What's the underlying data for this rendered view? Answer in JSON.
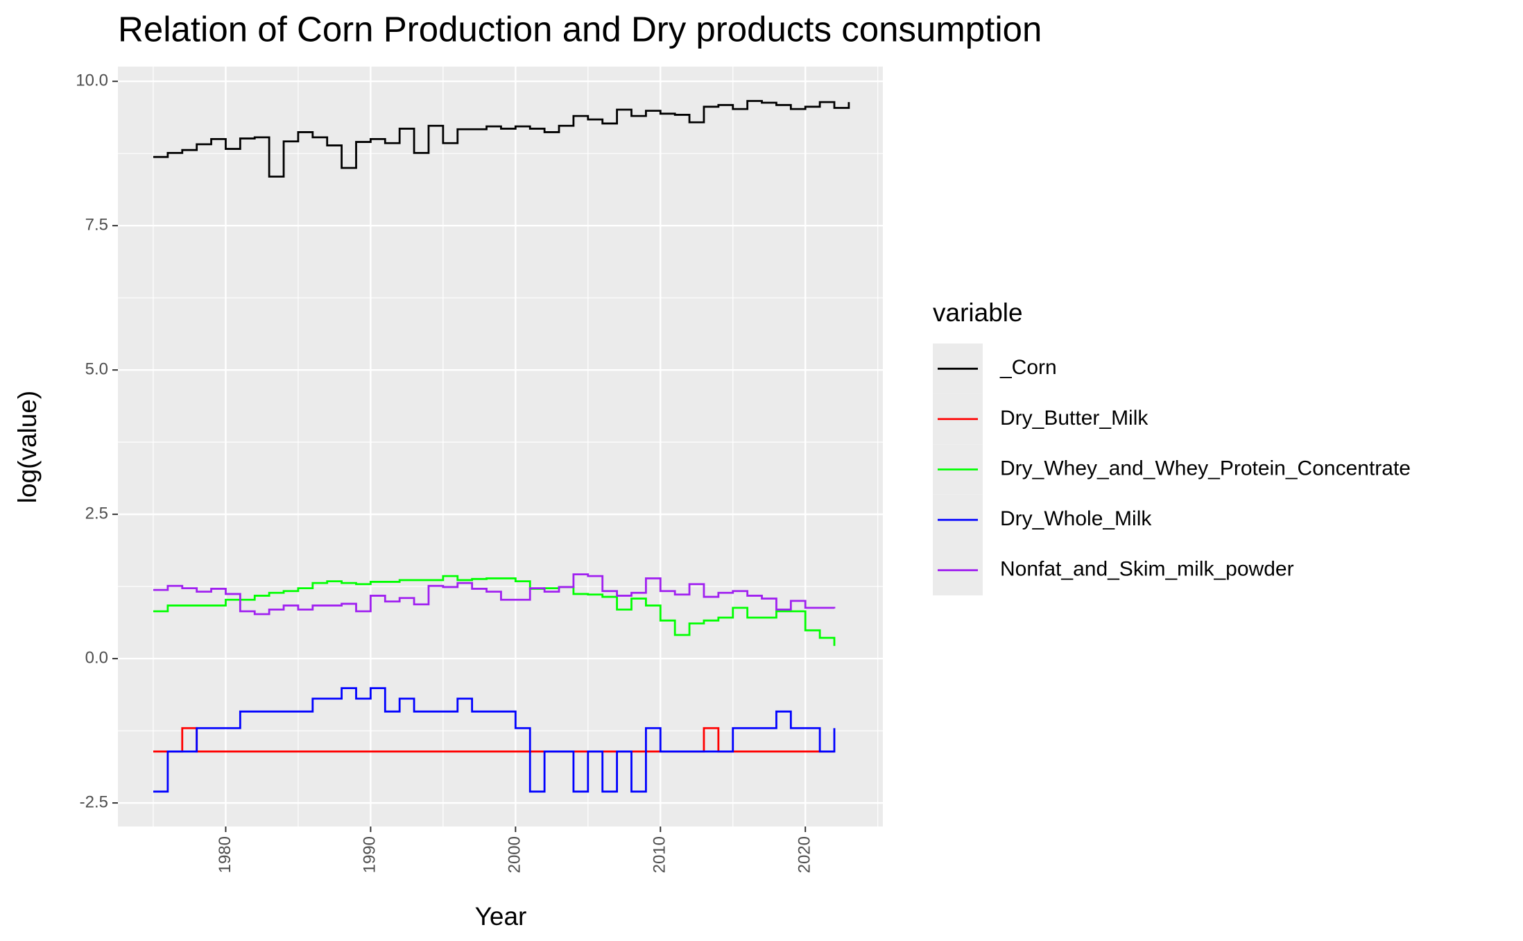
{
  "chart_data": {
    "type": "step",
    "title": "Relation of Corn Production and Dry products consumption",
    "x_label": "Year",
    "y_label": "log(value)",
    "legend_title": "variable",
    "legend": "right",
    "grid": true,
    "x": [
      1975,
      1976,
      1977,
      1978,
      1979,
      1980,
      1981,
      1982,
      1983,
      1984,
      1985,
      1986,
      1987,
      1988,
      1989,
      1990,
      1991,
      1992,
      1993,
      1994,
      1995,
      1996,
      1997,
      1998,
      1999,
      2000,
      2001,
      2002,
      2003,
      2004,
      2005,
      2006,
      2007,
      2008,
      2009,
      2010,
      2011,
      2012,
      2013,
      2014,
      2015,
      2016,
      2017,
      2018,
      2019,
      2020,
      2021,
      2022,
      2023
    ],
    "xlim": [
      1972.56,
      2025.35
    ],
    "xticks": [
      1980,
      1990,
      2000,
      2010,
      2020
    ],
    "ylim": [
      -2.908,
      10.255
    ],
    "yticks": [
      {
        "value": 10,
        "label": "10.0"
      },
      7.5,
      {
        "value": 5,
        "label": "5.0"
      },
      2.5,
      {
        "value": 0,
        "label": "0.0"
      },
      -2.5
    ],
    "series": [
      {
        "name": "_Corn",
        "color": "#000000",
        "values": [
          8.69,
          8.76,
          8.81,
          8.91,
          9.0,
          8.83,
          9.01,
          9.03,
          8.35,
          8.96,
          9.12,
          9.03,
          8.89,
          8.5,
          8.95,
          9.0,
          8.93,
          9.18,
          8.76,
          9.23,
          8.93,
          9.17,
          9.17,
          9.22,
          9.18,
          9.22,
          9.18,
          9.12,
          9.23,
          9.4,
          9.34,
          9.27,
          9.51,
          9.4,
          9.49,
          9.44,
          9.42,
          9.29,
          9.56,
          9.59,
          9.52,
          9.66,
          9.63,
          9.59,
          9.52,
          9.56,
          9.64,
          9.54,
          9.64
        ]
      },
      {
        "name": "Dry_Butter_Milk",
        "color": "#ff0000",
        "values": [
          -1.609,
          -1.609,
          -1.204,
          -1.609,
          -1.609,
          -1.609,
          -1.609,
          -1.609,
          -1.609,
          -1.609,
          -1.609,
          -1.609,
          -1.609,
          -1.609,
          -1.609,
          -1.609,
          -1.609,
          -1.609,
          -1.609,
          -1.609,
          -1.609,
          -1.609,
          -1.609,
          -1.609,
          -1.609,
          -1.609,
          -1.609,
          -1.609,
          -1.609,
          -1.609,
          -1.609,
          -1.609,
          -1.609,
          -1.609,
          -1.609,
          -1.609,
          -1.609,
          -1.609,
          -1.204,
          -1.609,
          -1.609,
          -1.609,
          -1.609,
          -1.609,
          -1.609,
          -1.609,
          -1.609,
          -1.609,
          null
        ]
      },
      {
        "name": "Dry_Whey_and_Whey_Protein_Concentrate",
        "color": "#00ff00",
        "values": [
          0.82,
          0.92,
          0.92,
          0.92,
          0.92,
          1.02,
          1.02,
          1.09,
          1.14,
          1.17,
          1.22,
          1.31,
          1.34,
          1.31,
          1.29,
          1.33,
          1.33,
          1.36,
          1.36,
          1.36,
          1.43,
          1.36,
          1.38,
          1.39,
          1.39,
          1.34,
          1.21,
          1.22,
          1.24,
          1.12,
          1.11,
          1.07,
          0.85,
          1.04,
          0.92,
          0.66,
          0.41,
          0.61,
          0.66,
          0.71,
          0.88,
          0.71,
          0.71,
          0.82,
          0.82,
          0.49,
          0.36,
          0.22,
          null
        ]
      },
      {
        "name": "Dry_Whole_Milk",
        "color": "#0000ff",
        "values": [
          -2.303,
          -1.609,
          -1.609,
          -1.204,
          -1.204,
          -1.204,
          -0.916,
          -0.916,
          -0.916,
          -0.916,
          -0.916,
          -0.693,
          -0.693,
          -0.511,
          -0.693,
          -0.511,
          -0.916,
          -0.693,
          -0.916,
          -0.916,
          -0.916,
          -0.693,
          -0.916,
          -0.916,
          -0.916,
          -1.204,
          -2.303,
          -1.609,
          -1.609,
          -2.303,
          -1.609,
          -2.303,
          -1.609,
          -2.303,
          -1.204,
          -1.609,
          -1.609,
          -1.609,
          -1.609,
          -1.609,
          -1.204,
          -1.204,
          -1.204,
          -0.916,
          -1.204,
          -1.204,
          -1.609,
          -1.204,
          null
        ]
      },
      {
        "name": "Nonfat_and_Skim_milk_powder",
        "color": "#a020f0",
        "values": [
          1.19,
          1.26,
          1.22,
          1.16,
          1.21,
          1.12,
          0.82,
          0.77,
          0.85,
          0.92,
          0.85,
          0.92,
          0.92,
          0.95,
          0.82,
          1.09,
          0.99,
          1.05,
          0.94,
          1.26,
          1.24,
          1.31,
          1.21,
          1.16,
          1.02,
          1.02,
          1.22,
          1.16,
          1.24,
          1.46,
          1.43,
          1.17,
          1.09,
          1.14,
          1.39,
          1.17,
          1.11,
          1.29,
          1.07,
          1.14,
          1.17,
          1.09,
          1.04,
          0.85,
          1.0,
          0.88,
          0.88,
          0.87,
          null
        ]
      }
    ]
  }
}
